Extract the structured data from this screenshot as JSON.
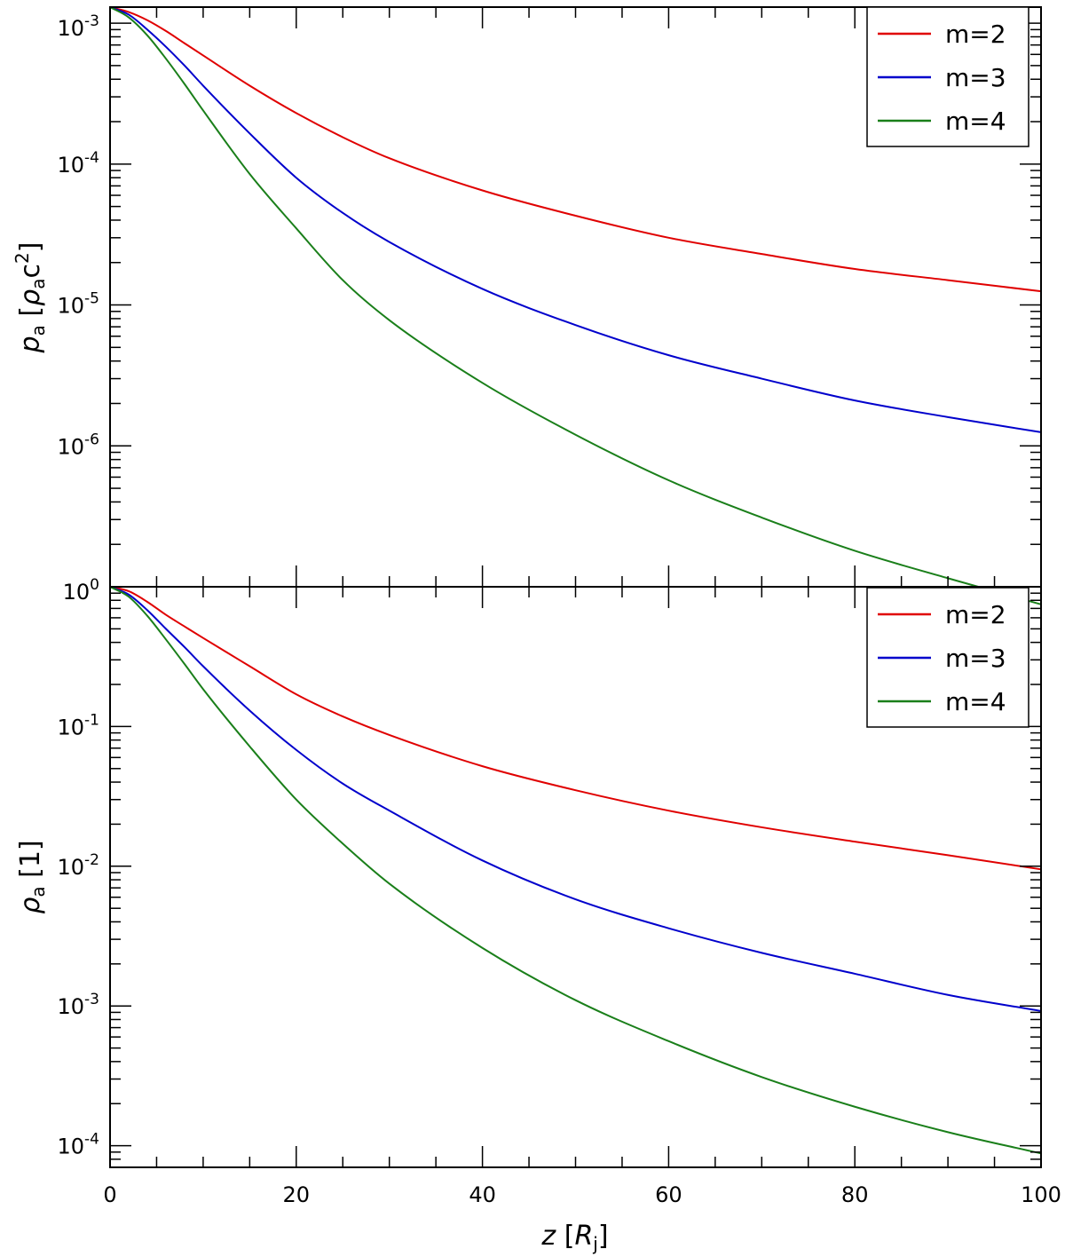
{
  "colors": {
    "m2": "#e00000",
    "m3": "#0000cc",
    "m4": "#1a7f1a",
    "axis": "#000000"
  },
  "chart_data": [
    {
      "type": "line",
      "panel": "top",
      "title": "",
      "ylabel": {
        "base": "p",
        "sub": "a",
        "units_prefix": "[",
        "units_base": "ρ",
        "units_sub": "a",
        "units_c": "c",
        "units_sup": "2",
        "units_suffix": "]"
      },
      "yscale": "log",
      "ylim": [
        1e-07,
        0.0013
      ],
      "xlim": [
        0,
        100
      ],
      "yticks": [
        {
          "base": "10",
          "exp": "-3",
          "value": 0.001
        },
        {
          "base": "10",
          "exp": "-4",
          "value": 0.0001
        },
        {
          "base": "10",
          "exp": "-5",
          "value": 1e-05
        },
        {
          "base": "10",
          "exp": "-6",
          "value": 1e-06
        }
      ],
      "legend": {
        "placement": "top-right"
      },
      "x": [
        0,
        2,
        4,
        6,
        8,
        10,
        15,
        20,
        25,
        30,
        40,
        50,
        60,
        70,
        80,
        90,
        100
      ],
      "series": [
        {
          "name": "m=2",
          "color_key": "m2",
          "values": [
            0.0013,
            0.0012,
            0.00105,
            0.00088,
            0.00072,
            0.00059,
            0.00036,
            0.00023,
            0.000155,
            0.00011,
            6.5e-05,
            4.3e-05,
            3e-05,
            2.3e-05,
            1.8e-05,
            1.5e-05,
            1.25e-05
          ]
        },
        {
          "name": "m=3",
          "color_key": "m3",
          "values": [
            0.0013,
            0.00115,
            0.0009,
            0.00068,
            0.0005,
            0.00036,
            0.000165,
            8e-05,
            4.5e-05,
            2.8e-05,
            1.3e-05,
            7.2e-06,
            4.4e-06,
            3e-06,
            2.1e-06,
            1.6e-06,
            1.25e-06
          ]
        },
        {
          "name": "m=4",
          "color_key": "m4",
          "values": [
            0.0013,
            0.0011,
            0.00082,
            0.00056,
            0.00037,
            0.00024,
            8.5e-05,
            3.5e-05,
            1.5e-05,
            7.8e-06,
            2.8e-06,
            1.2e-06,
            5.7e-07,
            3.1e-07,
            1.8e-07,
            1.15e-07,
            7.5e-08
          ]
        }
      ]
    },
    {
      "type": "line",
      "panel": "bottom",
      "title": "",
      "ylabel": {
        "base": "ρ",
        "sub": "a",
        "units": "[1]"
      },
      "xlabel": {
        "base": "z",
        "units_prefix": "[",
        "units_base": "R",
        "units_sub": "j",
        "units_suffix": "]"
      },
      "yscale": "log",
      "ylim": [
        7e-05,
        1.0
      ],
      "xlim": [
        0,
        100
      ],
      "xticks": [
        {
          "label": "0",
          "value": 0
        },
        {
          "label": "20",
          "value": 20
        },
        {
          "label": "40",
          "value": 40
        },
        {
          "label": "60",
          "value": 60
        },
        {
          "label": "80",
          "value": 80
        },
        {
          "label": "100",
          "value": 100
        }
      ],
      "yticks": [
        {
          "base": "10",
          "exp": "0",
          "value": 1
        },
        {
          "base": "10",
          "exp": "-1",
          "value": 0.1
        },
        {
          "base": "10",
          "exp": "-2",
          "value": 0.01
        },
        {
          "base": "10",
          "exp": "-3",
          "value": 0.001
        },
        {
          "base": "10",
          "exp": "-4",
          "value": 0.0001
        }
      ],
      "legend": {
        "placement": "top-right"
      },
      "x": [
        0,
        2,
        4,
        6,
        8,
        10,
        15,
        20,
        25,
        30,
        40,
        50,
        60,
        70,
        80,
        90,
        100
      ],
      "series": [
        {
          "name": "m=2",
          "color_key": "m2",
          "values": [
            1.0,
            0.93,
            0.78,
            0.63,
            0.52,
            0.43,
            0.27,
            0.17,
            0.118,
            0.087,
            0.052,
            0.035,
            0.025,
            0.019,
            0.015,
            0.012,
            0.0095
          ]
        },
        {
          "name": "m=3",
          "color_key": "m3",
          "values": [
            1.0,
            0.88,
            0.68,
            0.5,
            0.37,
            0.27,
            0.13,
            0.068,
            0.039,
            0.025,
            0.011,
            0.0058,
            0.0036,
            0.0024,
            0.0017,
            0.0012,
            0.00092
          ]
        },
        {
          "name": "m=4",
          "color_key": "m4",
          "values": [
            1.0,
            0.85,
            0.62,
            0.42,
            0.28,
            0.185,
            0.072,
            0.03,
            0.0145,
            0.0075,
            0.0026,
            0.0011,
            0.00056,
            0.00031,
            0.00019,
            0.000125,
            8.8e-05
          ]
        }
      ]
    }
  ]
}
